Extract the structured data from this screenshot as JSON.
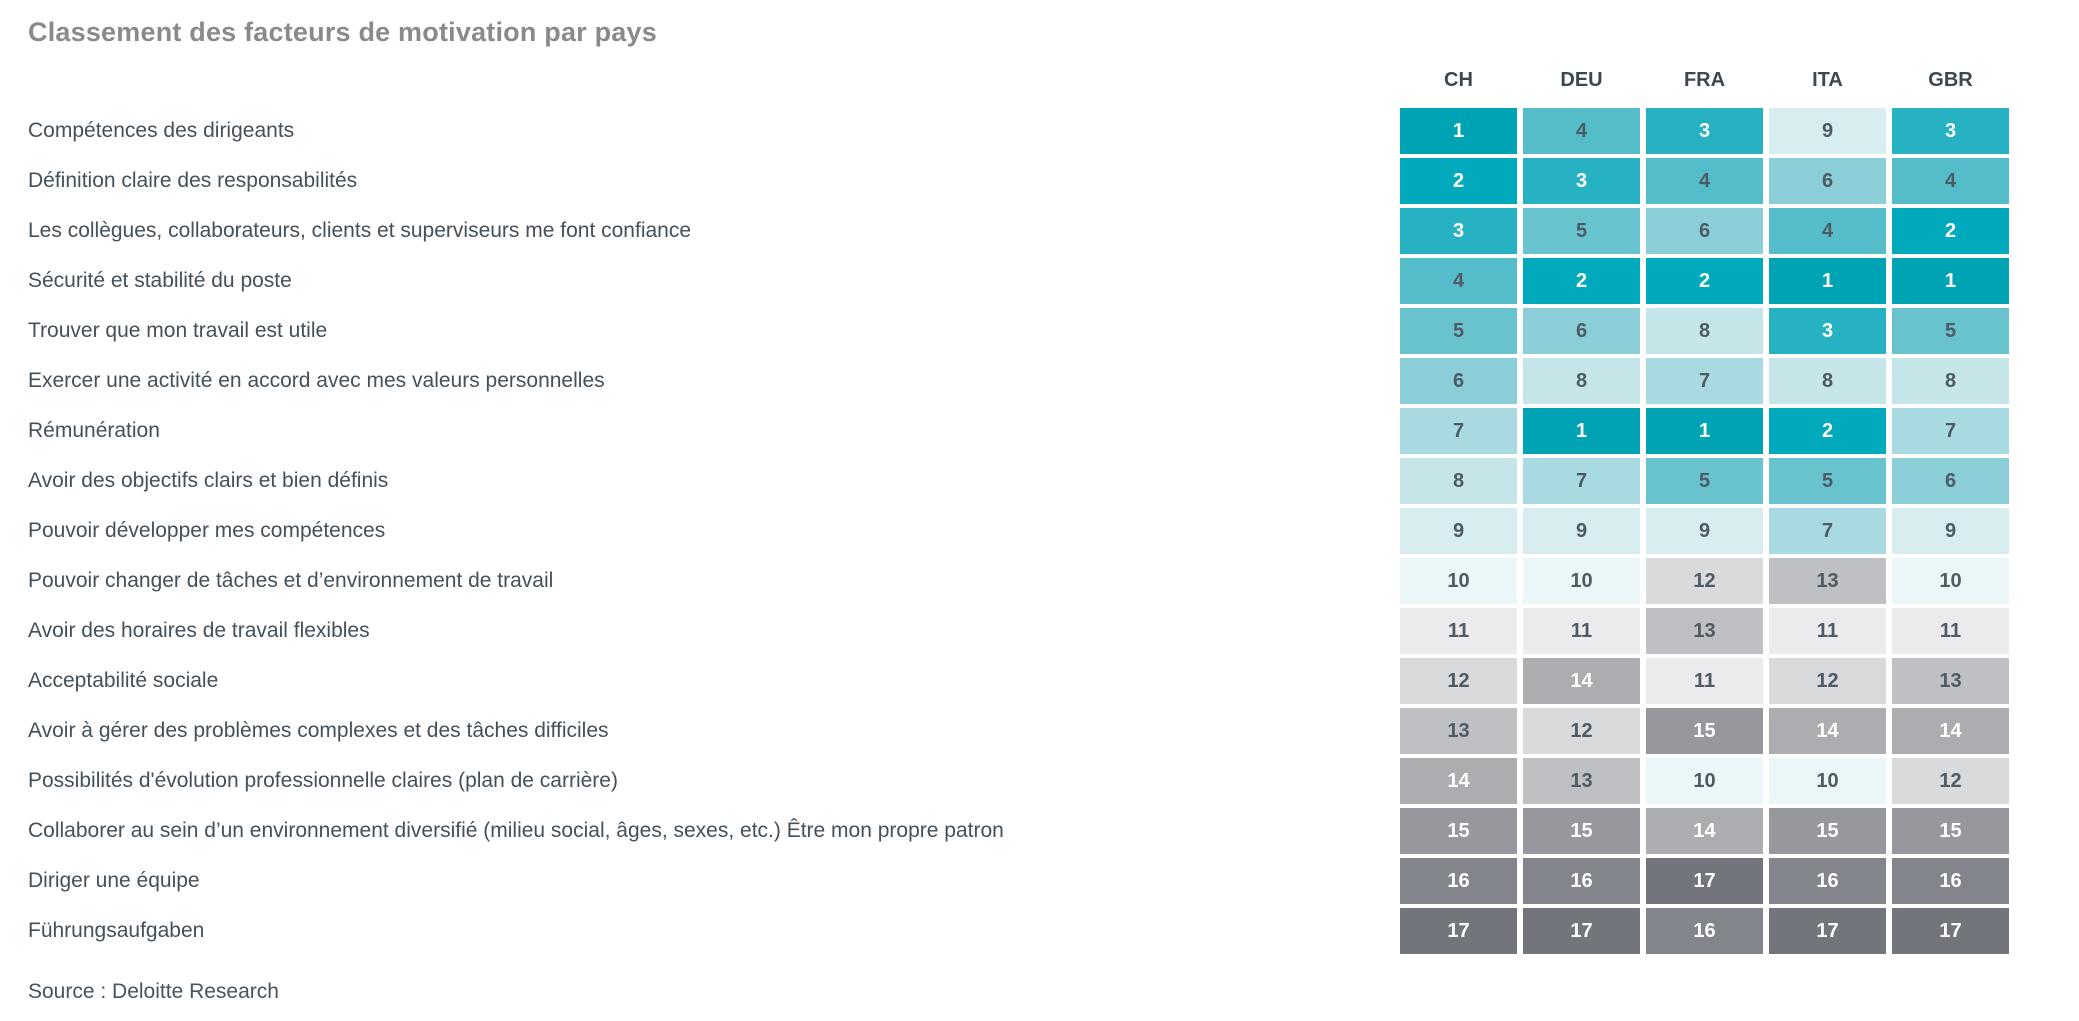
{
  "title": "Classement des facteurs de motivation par pays",
  "source_note": "Source : Deloitte Research",
  "chart_data": {
    "type": "heatmap",
    "title": "Classement des facteurs de motivation par pays",
    "columns": [
      "CH",
      "DEU",
      "FRA",
      "ITA",
      "GBR"
    ],
    "rows": [
      {
        "label": "Compétences des dirigeants",
        "values": [
          1,
          4,
          3,
          9,
          3
        ]
      },
      {
        "label": "Définition claire des responsabilités",
        "values": [
          2,
          3,
          4,
          6,
          4
        ]
      },
      {
        "label": "Les collègues, collaborateurs, clients et superviseurs me font confiance",
        "values": [
          3,
          5,
          6,
          4,
          2
        ]
      },
      {
        "label": "Sécurité et stabilité du poste",
        "values": [
          4,
          2,
          2,
          1,
          1
        ]
      },
      {
        "label": "Trouver que mon travail est utile",
        "values": [
          5,
          6,
          8,
          3,
          5
        ]
      },
      {
        "label": "Exercer une activité en accord avec mes valeurs personnelles",
        "values": [
          6,
          8,
          7,
          8,
          8
        ]
      },
      {
        "label": "Rémunération",
        "values": [
          7,
          1,
          1,
          2,
          7
        ]
      },
      {
        "label": "Avoir des objectifs clairs et bien définis",
        "values": [
          8,
          7,
          5,
          5,
          6
        ]
      },
      {
        "label": "Pouvoir développer mes compétences",
        "values": [
          9,
          9,
          9,
          7,
          9
        ]
      },
      {
        "label": "Pouvoir changer de tâches et d’environnement de travail",
        "values": [
          10,
          10,
          12,
          13,
          10
        ]
      },
      {
        "label": "Avoir des horaires de travail flexibles",
        "values": [
          11,
          11,
          13,
          11,
          11
        ]
      },
      {
        "label": "Acceptabilité sociale",
        "values": [
          12,
          14,
          11,
          12,
          13
        ]
      },
      {
        "label": "Avoir à gérer des problèmes complexes et des tâches difficiles",
        "values": [
          13,
          12,
          15,
          14,
          14
        ]
      },
      {
        "label": "Possibilités d'évolution professionnelle claires (plan de carrière)",
        "values": [
          14,
          13,
          10,
          10,
          12
        ]
      },
      {
        "label": "Collaborer au sein d’un environnement diversifié (milieu social, âges, sexes, etc.) Être mon propre patron",
        "values": [
          15,
          15,
          14,
          15,
          15
        ]
      },
      {
        "label": "Diriger une équipe",
        "values": [
          16,
          16,
          17,
          16,
          16
        ]
      },
      {
        "label": "Führungsaufgaben",
        "values": [
          17,
          17,
          16,
          17,
          17
        ]
      }
    ],
    "value_range": [
      1,
      17
    ],
    "legend_position": "none",
    "palette": {
      "rank_colors": {
        "1": "#00a3b4",
        "2": "#00a9bb",
        "3": "#26b2c2",
        "4": "#55bdca",
        "5": "#68c3cf",
        "6": "#8cced7",
        "7": "#a9dae1",
        "8": "#c6e5e9",
        "9": "#d8edf0",
        "10": "#eaf6f7",
        "11": "#ebebed",
        "12": "#d9dadc",
        "13": "#bfc0c3",
        "14": "#abadb1",
        "15": "#96989e",
        "16": "#83858c",
        "17": "#73757d"
      },
      "white_text_ranks": [
        1,
        2,
        3,
        14,
        15,
        16,
        17
      ],
      "white_text_color": "#ffffff",
      "dark_text_color": "#4e5a64"
    }
  }
}
